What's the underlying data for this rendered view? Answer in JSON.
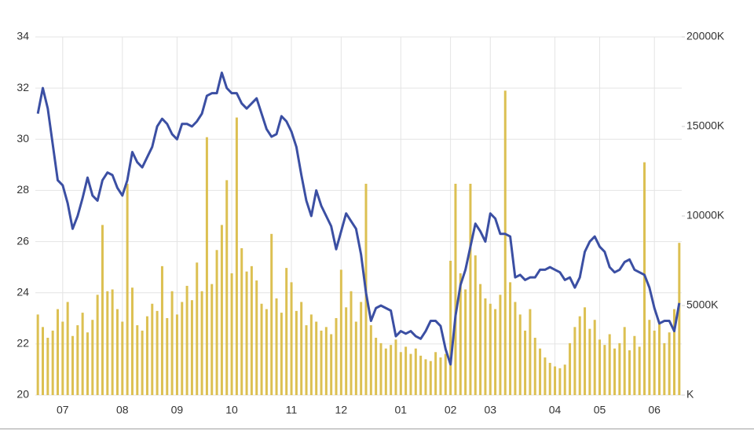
{
  "chart_data": {
    "type": "line",
    "categories": [
      null,
      null,
      null,
      null,
      null,
      "07",
      null,
      null,
      null,
      null,
      null,
      null,
      null,
      null,
      null,
      null,
      null,
      "08",
      null,
      null,
      null,
      null,
      null,
      null,
      null,
      null,
      null,
      null,
      "09",
      null,
      null,
      null,
      null,
      null,
      null,
      null,
      null,
      null,
      null,
      "10",
      null,
      null,
      null,
      null,
      null,
      null,
      null,
      null,
      null,
      null,
      null,
      "11",
      null,
      null,
      null,
      null,
      null,
      null,
      null,
      null,
      null,
      "12",
      null,
      null,
      null,
      null,
      null,
      null,
      null,
      null,
      null,
      null,
      null,
      "01",
      null,
      null,
      null,
      null,
      null,
      null,
      null,
      null,
      null,
      "02",
      null,
      null,
      null,
      null,
      null,
      null,
      null,
      "03",
      null,
      null,
      null,
      null,
      null,
      null,
      null,
      null,
      null,
      null,
      null,
      null,
      "04",
      null,
      null,
      null,
      null,
      null,
      null,
      null,
      null,
      "05",
      null,
      null,
      null,
      null,
      null,
      null,
      null,
      null,
      null,
      null,
      "06",
      null,
      null,
      null,
      null,
      null
    ],
    "series": [
      {
        "color": "#3b4fa3",
        "axis": "y",
        "values": [
          31.0,
          32.0,
          31.2,
          29.8,
          28.4,
          28.2,
          27.5,
          26.5,
          27.0,
          27.7,
          28.5,
          27.8,
          27.6,
          28.4,
          28.7,
          28.6,
          28.1,
          27.8,
          28.4,
          29.5,
          29.1,
          28.9,
          29.3,
          29.7,
          30.5,
          30.8,
          30.6,
          30.2,
          30.0,
          30.6,
          30.6,
          30.5,
          30.7,
          31.0,
          31.7,
          31.8,
          31.8,
          32.6,
          32.0,
          31.8,
          31.8,
          31.4,
          31.2,
          31.4,
          31.6,
          31.0,
          30.4,
          30.1,
          30.2,
          30.9,
          30.7,
          30.3,
          29.7,
          28.6,
          27.6,
          27.0,
          28.0,
          27.4,
          27.0,
          26.6,
          25.7,
          26.4,
          27.1,
          26.8,
          26.5,
          25.5,
          24.0,
          22.9,
          23.4,
          23.5,
          23.4,
          23.3,
          22.3,
          22.5,
          22.4,
          22.5,
          22.3,
          22.2,
          22.5,
          22.9,
          22.9,
          22.7,
          21.8,
          21.2,
          23.1,
          24.3,
          24.9,
          25.8,
          26.7,
          26.4,
          26.0,
          27.1,
          26.9,
          26.3,
          26.3,
          26.2,
          24.6,
          24.7,
          24.5,
          24.6,
          24.6,
          24.9,
          24.9,
          25.0,
          24.9,
          24.8,
          24.5,
          24.6,
          24.2,
          24.6,
          25.6,
          26.0,
          26.2,
          25.8,
          25.6,
          25.0,
          24.8,
          24.9,
          25.2,
          25.3,
          24.9,
          24.8,
          24.7,
          24.2,
          23.4,
          22.8,
          22.9,
          22.9,
          22.5,
          23.6
        ]
      },
      {
        "color": "#dcc052",
        "axis": "y2",
        "type": "bar",
        "values": [
          4500,
          3800,
          3200,
          3600,
          4800,
          4100,
          5200,
          3300,
          3900,
          4600,
          3500,
          4200,
          5600,
          9500,
          5800,
          5900,
          4800,
          4100,
          11800,
          6000,
          3900,
          3600,
          4400,
          5100,
          4700,
          7200,
          4300,
          5800,
          4500,
          5200,
          6100,
          5300,
          7400,
          5800,
          14400,
          6200,
          8100,
          9500,
          12000,
          6800,
          15500,
          8200,
          6900,
          7200,
          6400,
          5100,
          4800,
          9000,
          5400,
          4600,
          7100,
          6300,
          4700,
          5200,
          3900,
          4500,
          4100,
          3600,
          3800,
          3400,
          4300,
          7000,
          4900,
          5800,
          4100,
          5200,
          11800,
          3900,
          3200,
          2900,
          2600,
          2800,
          3100,
          2400,
          2700,
          2300,
          2600,
          2200,
          2000,
          1900,
          2400,
          2100,
          2300,
          7500,
          11800,
          6800,
          5900,
          11800,
          7800,
          6200,
          5400,
          5100,
          4800,
          5600,
          17000,
          6300,
          5200,
          4500,
          3600,
          4800,
          3200,
          2600,
          2100,
          1800,
          1600,
          1500,
          1700,
          2900,
          3800,
          4400,
          4900,
          3700,
          4200,
          3100,
          2800,
          3400,
          2600,
          2900,
          3800,
          2500,
          3300,
          2700,
          13000,
          4200,
          3600,
          4100,
          2900,
          3500,
          4800,
          8500
        ]
      }
    ],
    "ylim": [
      20,
      34
    ],
    "yticks": [
      20,
      22,
      24,
      26,
      28,
      30,
      32,
      34
    ],
    "y2lim": [
      0,
      20000
    ],
    "y2ticks": [
      {
        "value": 0,
        "label": "K"
      },
      {
        "value": 5000,
        "label": "5000K"
      },
      {
        "value": 10000,
        "label": "10000K"
      },
      {
        "value": 15000,
        "label": "15000K"
      },
      {
        "value": 20000,
        "label": "20000K"
      }
    ],
    "grid": true
  }
}
